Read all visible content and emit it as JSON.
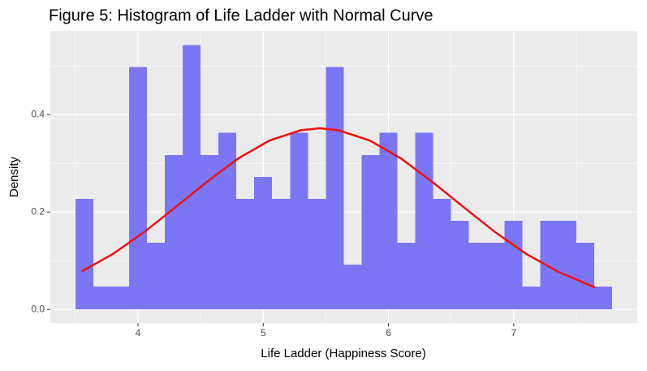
{
  "chart_data": {
    "type": "histogram",
    "title": "Figure 5: Histogram of Life Ladder with Normal Curve",
    "x_label": "Life Ladder (Happiness Score)",
    "y_label": "Density",
    "bins": [
      3.5,
      3.643,
      3.786,
      3.928,
      4.071,
      4.214,
      4.357,
      4.5,
      4.643,
      4.785,
      4.928,
      5.071,
      5.214,
      5.357,
      5.499,
      5.642,
      5.785,
      5.928,
      6.071,
      6.213,
      6.356,
      6.499,
      6.642,
      6.785,
      6.927,
      7.07,
      7.213,
      7.356,
      7.499,
      7.641,
      7.784
    ],
    "values": [
      0.227,
      0.047,
      0.047,
      0.498,
      0.137,
      0.317,
      0.543,
      0.317,
      0.363,
      0.227,
      0.272,
      0.227,
      0.363,
      0.227,
      0.498,
      0.092,
      0.317,
      0.363,
      0.137,
      0.363,
      0.227,
      0.182,
      0.137,
      0.137,
      0.182,
      0.047,
      0.182,
      0.182,
      0.137,
      0.047
    ],
    "color": "#7b76f5",
    "curve": {
      "color": "#ee1111",
      "x": [
        3.55,
        3.8,
        4.05,
        4.3,
        4.55,
        4.8,
        5.05,
        5.3,
        5.45,
        5.6,
        5.85,
        6.1,
        6.35,
        6.6,
        6.85,
        7.1,
        7.35,
        7.65
      ],
      "values": [
        0.078,
        0.114,
        0.159,
        0.21,
        0.262,
        0.31,
        0.347,
        0.368,
        0.372,
        0.368,
        0.347,
        0.31,
        0.262,
        0.21,
        0.159,
        0.114,
        0.078,
        0.045
      ]
    },
    "xlim": [
      3.3,
      7.986
    ],
    "ylim": [
      -0.028,
      0.572
    ],
    "xticks": [
      4,
      5,
      6,
      7
    ],
    "yticks": [
      {
        "value": 0,
        "label": "0.0"
      },
      0.2,
      0.4
    ],
    "minor_xticks": [
      3.5,
      4.5,
      5.5,
      6.5,
      7.5
    ],
    "minor_yticks": [
      0.1,
      0.3,
      0.5
    ],
    "grid": true
  }
}
